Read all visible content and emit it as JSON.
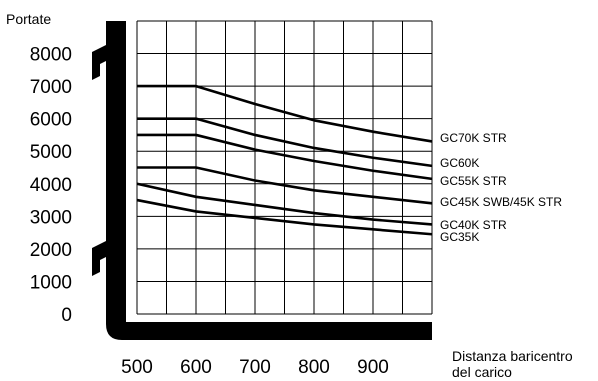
{
  "chart_data": {
    "type": "line",
    "ylabel": "Portate",
    "xlabel_line1": "Distanza baricentro",
    "xlabel_line2": "del carico",
    "x_ticks": [
      500,
      600,
      700,
      800,
      900
    ],
    "y_ticks": [
      0,
      1000,
      2000,
      3000,
      4000,
      5000,
      6000,
      7000,
      8000
    ],
    "xlim": [
      500,
      1000
    ],
    "ylim": [
      0,
      9000
    ],
    "grid": true,
    "series": [
      {
        "name": "GC70K STR",
        "x": [
          500,
          600,
          700,
          800,
          900,
          1000
        ],
        "y": [
          7000,
          7000,
          6450,
          5950,
          5600,
          5300
        ]
      },
      {
        "name": "GC60K",
        "x": [
          500,
          600,
          700,
          800,
          900,
          1000
        ],
        "y": [
          6000,
          6000,
          5500,
          5100,
          4800,
          4550
        ]
      },
      {
        "name": "GC55K STR",
        "x": [
          500,
          600,
          700,
          800,
          900,
          1000
        ],
        "y": [
          5500,
          5500,
          5050,
          4700,
          4400,
          4150
        ]
      },
      {
        "name": "GC45K SWB/45K STR",
        "x": [
          500,
          600,
          700,
          800,
          900,
          1000
        ],
        "y": [
          4500,
          4500,
          4100,
          3800,
          3600,
          3400
        ]
      },
      {
        "name": "GC40K STR",
        "x": [
          500,
          600,
          700,
          800,
          900,
          1000
        ],
        "y": [
          4000,
          3600,
          3350,
          3100,
          2900,
          2750
        ]
      },
      {
        "name": "GC35K",
        "x": [
          500,
          600,
          700,
          800,
          900,
          1000
        ],
        "y": [
          3500,
          3150,
          2950,
          2750,
          2600,
          2450
        ]
      }
    ]
  }
}
